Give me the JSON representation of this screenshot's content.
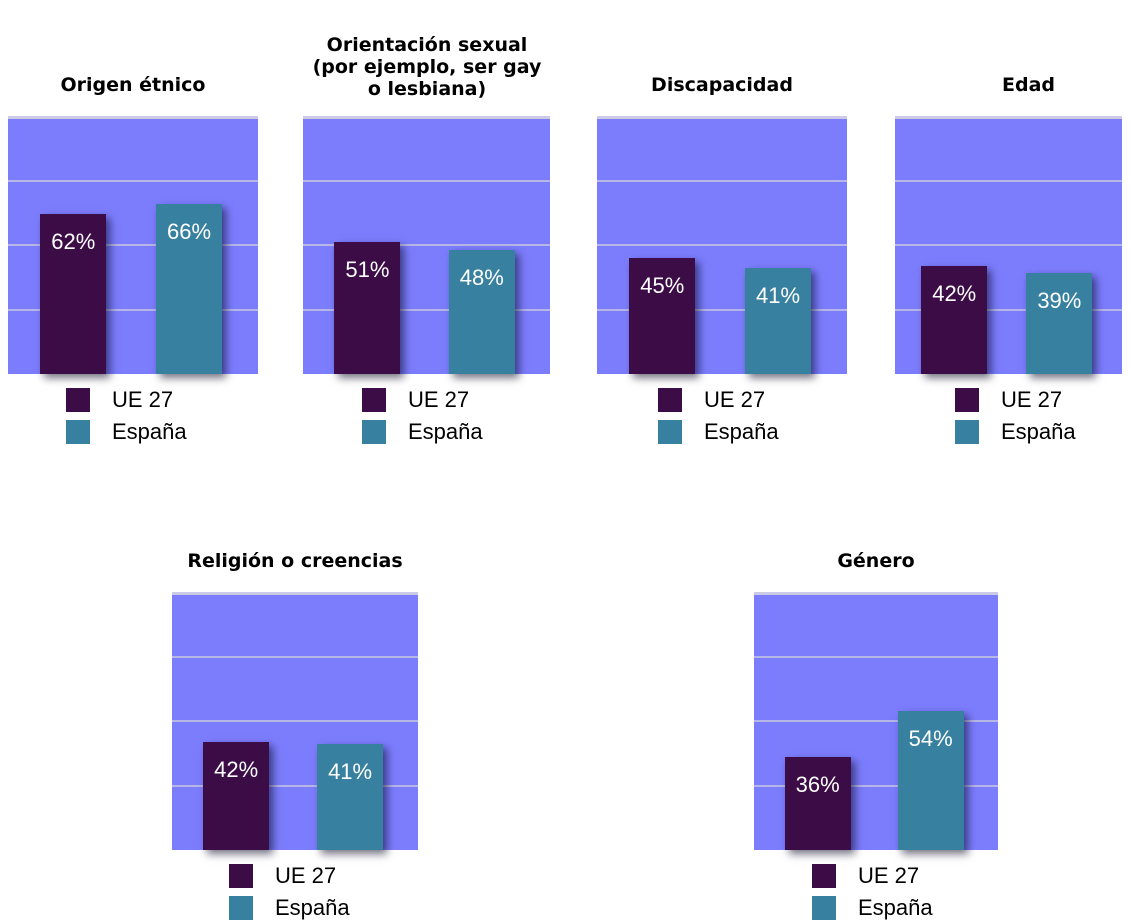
{
  "colors": {
    "plot_background": "#7c7dfd",
    "gridline": "#b6b7e6",
    "ue27": "#3b0c46",
    "espana": "#38809f"
  },
  "legend": {
    "ue27": "UE 27",
    "espana": "España"
  },
  "chart_data": [
    {
      "type": "bar",
      "title": "Origen étnico",
      "categories": [
        "UE 27",
        "España"
      ],
      "series": [
        {
          "values": [
            62,
            66
          ]
        }
      ],
      "value_labels": [
        "62%",
        "66%"
      ],
      "ylim": [
        0,
        100
      ],
      "grid": true
    },
    {
      "type": "bar",
      "title": "Orientación sexual (por ejemplo, ser gay o lesbiana)",
      "categories": [
        "UE 27",
        "España"
      ],
      "series": [
        {
          "values": [
            51,
            48
          ]
        }
      ],
      "value_labels": [
        "51%",
        "48%"
      ],
      "ylim": [
        0,
        100
      ],
      "grid": true
    },
    {
      "type": "bar",
      "title": "Discapacidad",
      "categories": [
        "UE 27",
        "España"
      ],
      "series": [
        {
          "values": [
            45,
            41
          ]
        }
      ],
      "value_labels": [
        "45%",
        "41%"
      ],
      "ylim": [
        0,
        100
      ],
      "grid": true
    },
    {
      "type": "bar",
      "title": "Edad",
      "categories": [
        "UE 27",
        "España"
      ],
      "series": [
        {
          "values": [
            42,
            39
          ]
        }
      ],
      "value_labels": [
        "42%",
        "39%"
      ],
      "ylim": [
        0,
        100
      ],
      "grid": true
    },
    {
      "type": "bar",
      "title": "Religión o creencias",
      "categories": [
        "UE 27",
        "España"
      ],
      "series": [
        {
          "values": [
            42,
            41
          ]
        }
      ],
      "value_labels": [
        "42%",
        "41%"
      ],
      "ylim": [
        0,
        100
      ],
      "grid": true
    },
    {
      "type": "bar",
      "title": "Género",
      "categories": [
        "UE 27",
        "España"
      ],
      "series": [
        {
          "values": [
            36,
            54
          ]
        }
      ],
      "value_labels": [
        "36%",
        "54%"
      ],
      "ylim": [
        0,
        100
      ],
      "grid": true
    }
  ]
}
